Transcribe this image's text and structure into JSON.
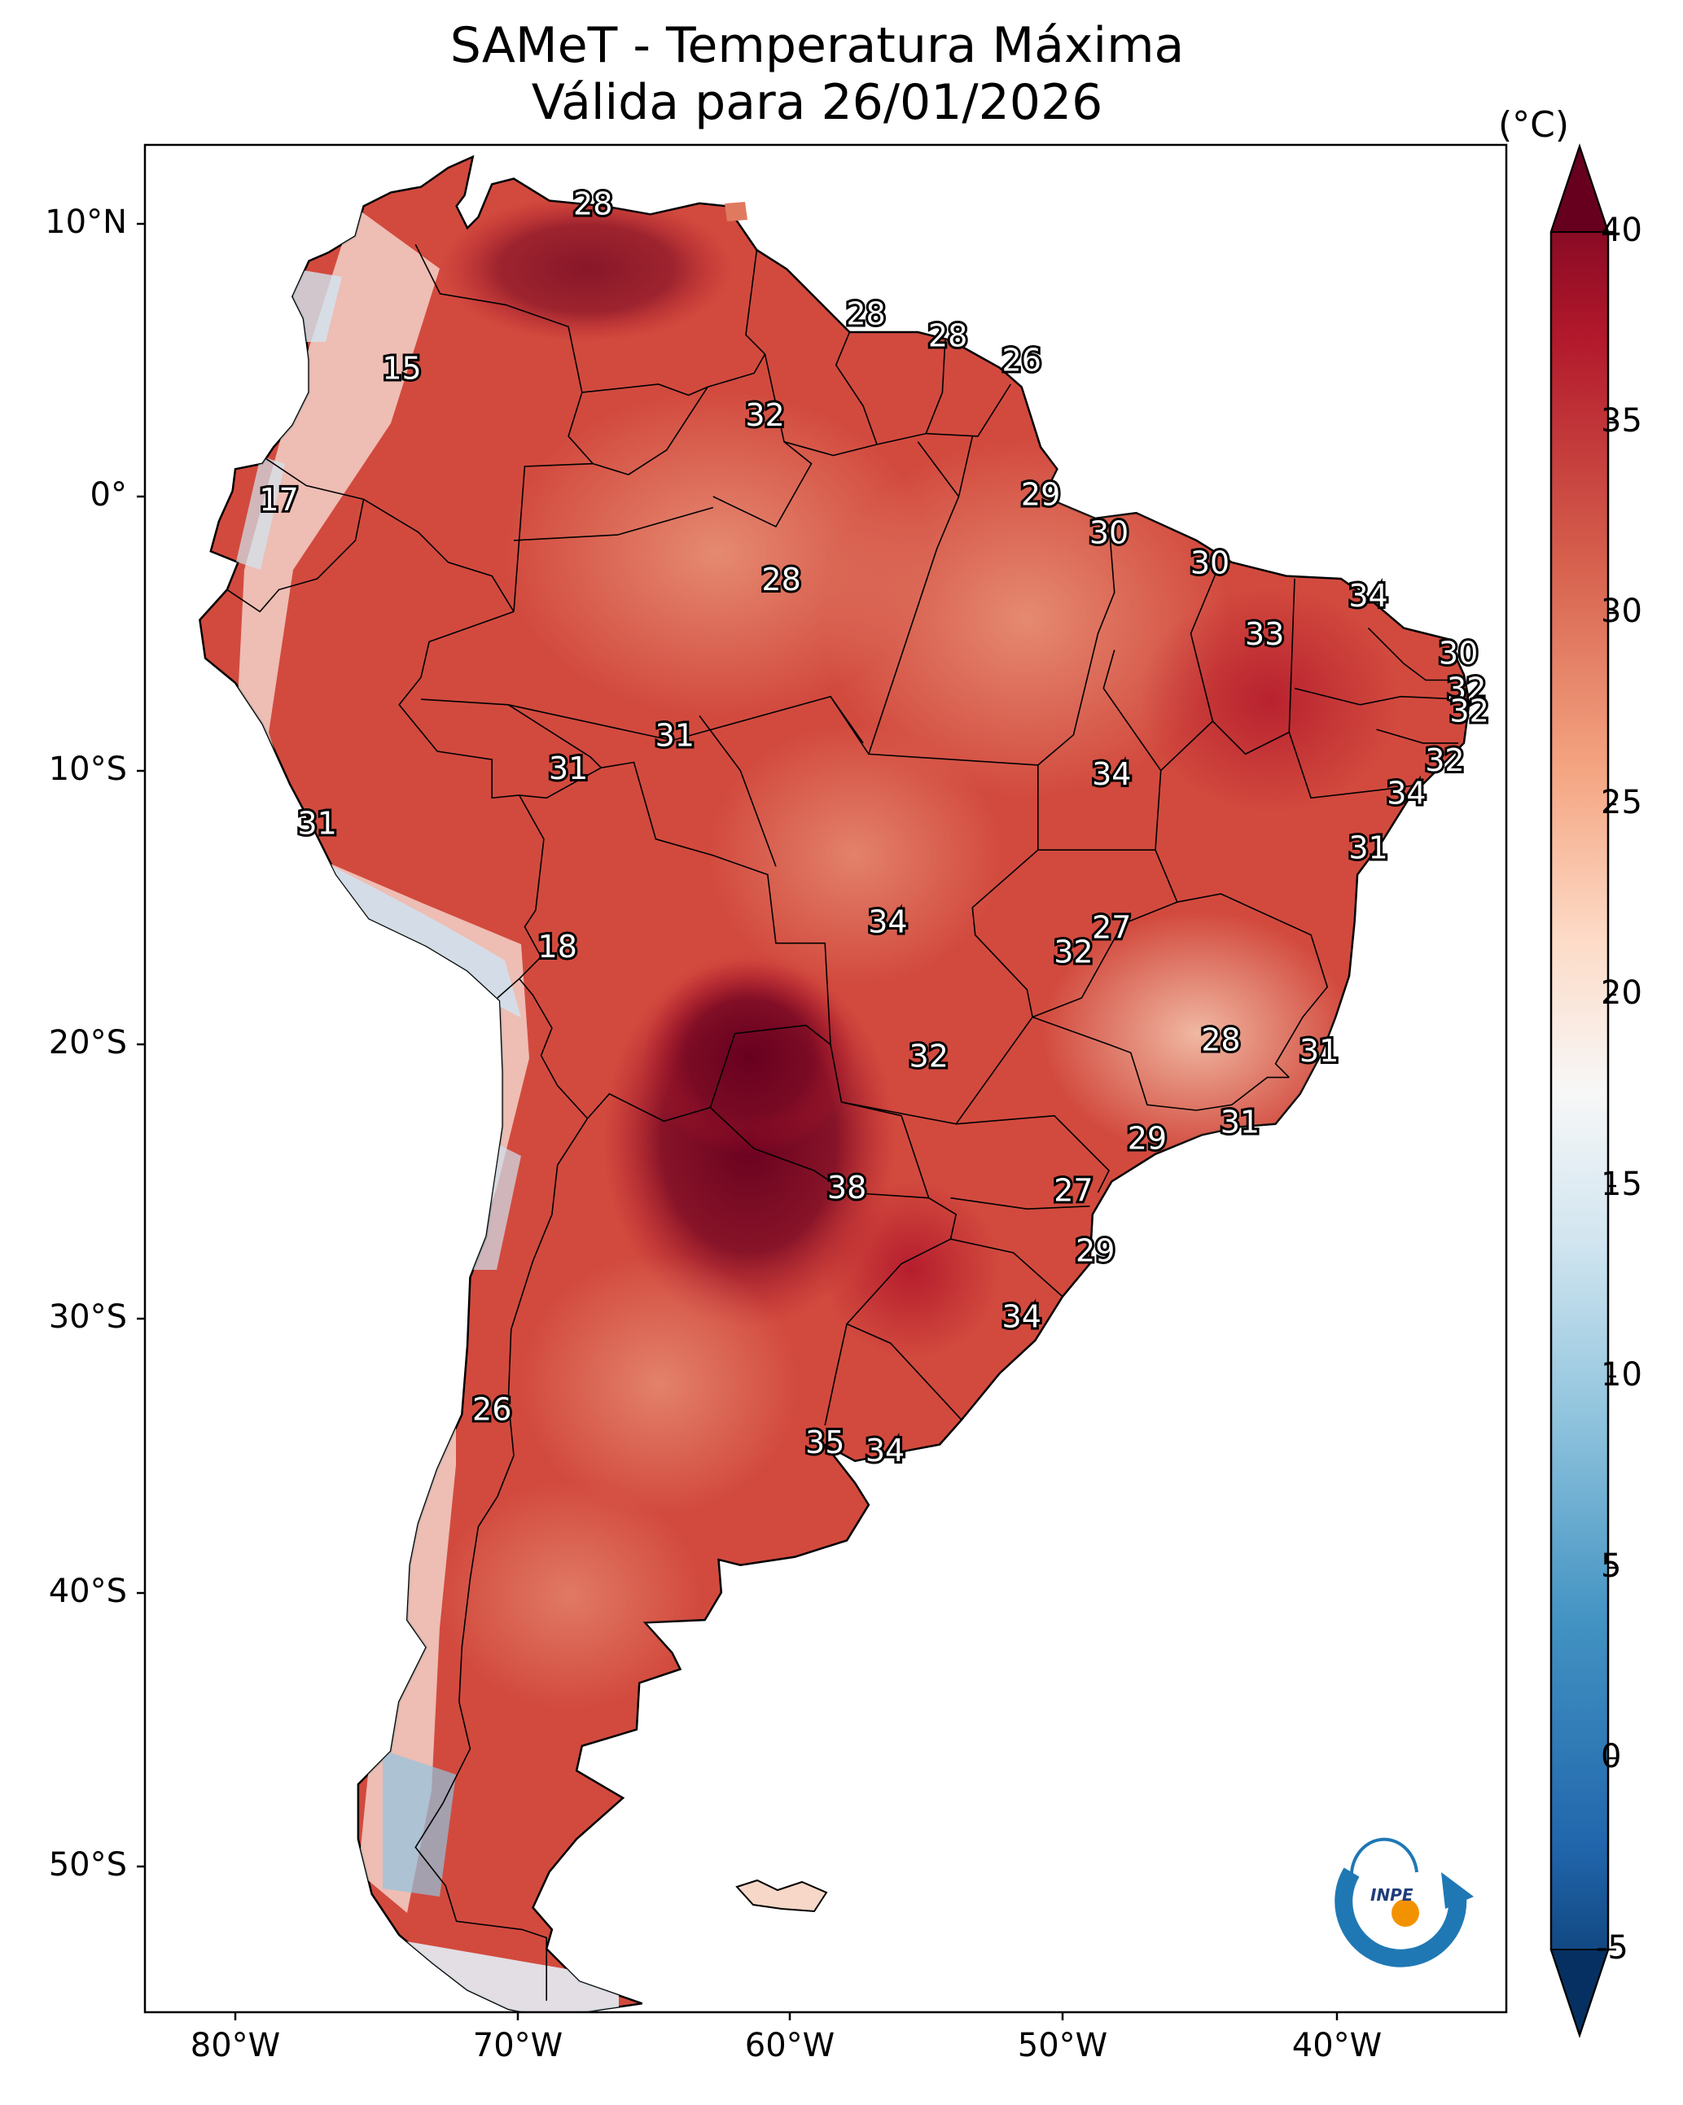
{
  "title": {
    "line1": "SAMeT - Temperatura Máxima",
    "line2": "Válida para 26/01/2026"
  },
  "lat_labels": [
    "10°N",
    "0°",
    "10°S",
    "20°S",
    "30°S",
    "40°S",
    "50°S"
  ],
  "lon_labels": [
    "80°W",
    "70°W",
    "60°W",
    "50°W",
    "40°W"
  ],
  "colorbar": {
    "unit": "(°C)",
    "ticks": [
      "40",
      "35",
      "30",
      "25",
      "20",
      "15",
      "10",
      "5",
      "0",
      "-5"
    ],
    "range": [
      -5,
      40
    ],
    "colors": [
      "#053061",
      "#2166ac",
      "#4393c3",
      "#92c5de",
      "#d1e5f0",
      "#f7f7f7",
      "#fddbc7",
      "#f4a582",
      "#d6604d",
      "#b2182b",
      "#67001f"
    ]
  },
  "map_labels": [
    {
      "value": "28",
      "lon": -66.9,
      "lat": 10.6
    },
    {
      "value": "15",
      "lon": -73.9,
      "lat": 4.6
    },
    {
      "value": "17",
      "lon": -78.4,
      "lat": -0.2
    },
    {
      "value": "28",
      "lon": -56.9,
      "lat": 6.6
    },
    {
      "value": "28",
      "lon": -53.9,
      "lat": 5.8
    },
    {
      "value": "26",
      "lon": -51.2,
      "lat": 4.9
    },
    {
      "value": "32",
      "lon": -60.6,
      "lat": 2.9
    },
    {
      "value": "29",
      "lon": -50.5,
      "lat": 0.0
    },
    {
      "value": "28",
      "lon": -60.0,
      "lat": -3.1
    },
    {
      "value": "30",
      "lon": -48.0,
      "lat": -1.4
    },
    {
      "value": "30",
      "lon": -44.3,
      "lat": -2.5
    },
    {
      "value": "34",
      "lon": -38.5,
      "lat": -3.7
    },
    {
      "value": "33",
      "lon": -42.3,
      "lat": -5.1
    },
    {
      "value": "30",
      "lon": -35.2,
      "lat": -5.8
    },
    {
      "value": "32",
      "lon": -34.9,
      "lat": -7.1
    },
    {
      "value": "32",
      "lon": -34.8,
      "lat": -7.9
    },
    {
      "value": "32",
      "lon": -35.7,
      "lat": -9.7
    },
    {
      "value": "34",
      "lon": -37.1,
      "lat": -10.9
    },
    {
      "value": "31",
      "lon": -38.5,
      "lat": -12.9
    },
    {
      "value": "34",
      "lon": -47.9,
      "lat": -10.2
    },
    {
      "value": "31",
      "lon": -63.9,
      "lat": -8.8
    },
    {
      "value": "31",
      "lon": -67.8,
      "lat": -10.0
    },
    {
      "value": "31",
      "lon": -77.0,
      "lat": -12.0
    },
    {
      "value": "18",
      "lon": -68.2,
      "lat": -16.5
    },
    {
      "value": "34",
      "lon": -56.1,
      "lat": -15.6
    },
    {
      "value": "27",
      "lon": -47.9,
      "lat": -15.8
    },
    {
      "value": "32",
      "lon": -49.3,
      "lat": -16.7
    },
    {
      "value": "28",
      "lon": -43.9,
      "lat": -19.9
    },
    {
      "value": "31",
      "lon": -40.3,
      "lat": -20.3
    },
    {
      "value": "32",
      "lon": -54.6,
      "lat": -20.5
    },
    {
      "value": "29",
      "lon": -46.6,
      "lat": -23.5
    },
    {
      "value": "31",
      "lon": -43.2,
      "lat": -22.9
    },
    {
      "value": "38",
      "lon": -57.6,
      "lat": -25.3
    },
    {
      "value": "27",
      "lon": -49.3,
      "lat": -25.4
    },
    {
      "value": "29",
      "lon": -48.5,
      "lat": -27.6
    },
    {
      "value": "34",
      "lon": -51.2,
      "lat": -30.0
    },
    {
      "value": "26",
      "lon": -70.6,
      "lat": -33.4
    },
    {
      "value": "35",
      "lon": -58.4,
      "lat": -34.6
    },
    {
      "value": "34",
      "lon": -56.2,
      "lat": -34.9
    }
  ],
  "logo": {
    "text": "INPE"
  }
}
